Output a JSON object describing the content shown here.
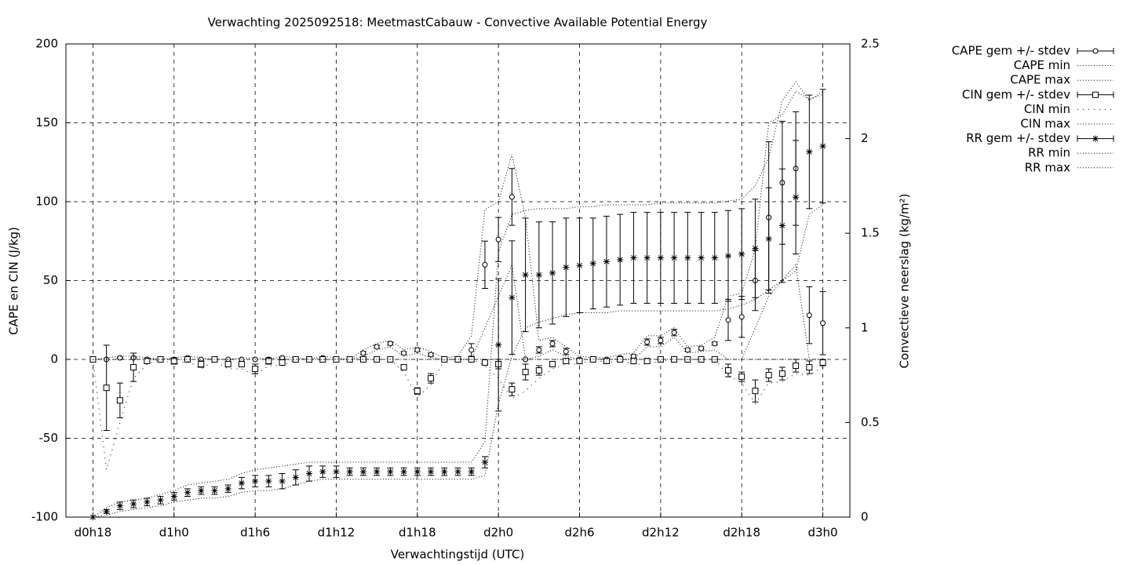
{
  "chart_data": {
    "type": "errorbar",
    "title": "Verwachting 2025092518: MeetmastCabauw - Convective Available Potential Energy",
    "xlabel": "Verwachtingstijd (UTC)",
    "ylabel": "CAPE en CIN (J/kg)",
    "y2label": "Convectieve neerslag (kg/m²)",
    "grid": true,
    "legend": "outside-right",
    "xlim": [
      -2,
      56
    ],
    "xticks": [
      {
        "value": 0,
        "label": "d0h18"
      },
      {
        "value": 6,
        "label": "d1h0"
      },
      {
        "value": 12,
        "label": "d1h6"
      },
      {
        "value": 18,
        "label": "d1h12"
      },
      {
        "value": 24,
        "label": "d1h18"
      },
      {
        "value": 30,
        "label": "d2h0"
      },
      {
        "value": 36,
        "label": "d2h6"
      },
      {
        "value": 42,
        "label": "d2h12"
      },
      {
        "value": 48,
        "label": "d2h18"
      },
      {
        "value": 54,
        "label": "d3h0"
      }
    ],
    "ylim": [
      -100,
      200
    ],
    "yticks": [
      -100,
      -50,
      0,
      50,
      100,
      150,
      200
    ],
    "y2lim": [
      0,
      2.5
    ],
    "y2ticks": [
      0,
      0.5,
      1,
      1.5,
      2,
      2.5
    ],
    "x": [
      0,
      1,
      2,
      3,
      4,
      5,
      6,
      7,
      8,
      9,
      10,
      11,
      12,
      13,
      14,
      15,
      16,
      17,
      18,
      19,
      20,
      21,
      22,
      23,
      24,
      25,
      26,
      27,
      28,
      29,
      30,
      31,
      32,
      33,
      34,
      35,
      36,
      37,
      38,
      39,
      40,
      41,
      42,
      43,
      44,
      45,
      46,
      47,
      48,
      49,
      50,
      51,
      52,
      53,
      54
    ],
    "series": [
      {
        "name": "CAPE gem +/- stdev",
        "color": "#000000",
        "marker": "circle",
        "values": [
          0,
          0,
          1,
          1,
          0,
          0,
          0,
          1,
          0,
          0,
          0,
          0,
          0,
          0,
          1,
          0,
          0,
          1,
          0,
          0,
          4,
          8,
          10,
          4,
          6,
          3,
          0,
          0,
          6,
          60,
          76,
          103,
          0,
          6,
          10,
          5,
          0,
          0,
          0,
          1,
          2,
          11,
          12,
          17,
          6,
          7,
          10,
          25,
          27,
          50,
          90,
          112,
          121,
          28,
          23
        ],
        "errors": [
          0,
          0,
          0.5,
          0.5,
          0,
          0,
          0.5,
          0.5,
          0,
          0,
          0,
          0,
          0,
          0,
          0.5,
          0,
          0,
          0.5,
          0,
          0,
          1,
          1,
          1,
          1,
          1,
          1,
          0,
          0,
          4,
          15,
          14,
          18,
          0,
          2,
          2,
          2,
          0,
          0,
          0,
          0.5,
          1,
          2,
          2,
          2,
          1,
          1,
          1,
          13,
          13,
          19,
          48,
          39,
          36,
          18,
          20
        ]
      },
      {
        "name": "CAPE min",
        "color": "#000000",
        "style": "dotted",
        "values": [
          0,
          0,
          0,
          0,
          0,
          0,
          0,
          0,
          0,
          0,
          0,
          0,
          0,
          0,
          0,
          0,
          0,
          0,
          0,
          0,
          2,
          6,
          8,
          2,
          4,
          1,
          0,
          0,
          0,
          20,
          40,
          60,
          0,
          2,
          6,
          2,
          0,
          0,
          0,
          0,
          0,
          8,
          8,
          14,
          4,
          5,
          6,
          0,
          0,
          20,
          40,
          50,
          60,
          0,
          0
        ]
      },
      {
        "name": "CAPE max",
        "color": "#000000",
        "style": "dotted",
        "values": [
          0,
          1,
          2,
          2,
          1,
          0,
          1,
          2,
          1,
          0,
          0,
          1,
          1,
          0,
          2,
          1,
          0,
          2,
          1,
          0,
          6,
          10,
          12,
          6,
          8,
          5,
          1,
          2,
          15,
          95,
          100,
          130,
          90,
          12,
          14,
          8,
          2,
          1,
          1,
          3,
          4,
          15,
          15,
          20,
          8,
          9,
          14,
          40,
          42,
          70,
          150,
          155,
          170,
          165,
          168
        ]
      },
      {
        "name": "CIN gem +/- stdev",
        "color": "#000000",
        "marker": "square",
        "values": [
          0,
          -18,
          -26,
          -5,
          -1,
          0,
          -1,
          0,
          -3,
          0,
          -3,
          -3,
          -6,
          -1,
          -2,
          0,
          0,
          0,
          0,
          0,
          0,
          0,
          0,
          -5,
          -20,
          -12,
          0,
          0,
          0,
          -2,
          -3,
          -19,
          -8,
          -7,
          -3,
          -1,
          -1,
          0,
          -1,
          0,
          -1,
          -1,
          0,
          0,
          0,
          0,
          0,
          -7,
          -11,
          -20,
          -10,
          -9,
          -4,
          -5,
          -2
        ],
        "errors": [
          0,
          27,
          11,
          9,
          1,
          0,
          2,
          0,
          2,
          0,
          1,
          1,
          3,
          2,
          1,
          0,
          0,
          0,
          0,
          0,
          0,
          0,
          0,
          1,
          2,
          3,
          0,
          0,
          0,
          1,
          3,
          4,
          5,
          3,
          1,
          1,
          1,
          0,
          1,
          0,
          1,
          1,
          0,
          0,
          0,
          0,
          0,
          4,
          3,
          7,
          4,
          4,
          4,
          4,
          2
        ]
      },
      {
        "name": "CIN min",
        "color": "#000000",
        "style": "sparse",
        "values": [
          0,
          -70,
          -40,
          -12,
          -3,
          0,
          -3,
          -1,
          -6,
          -1,
          -6,
          -6,
          -10,
          -4,
          -4,
          0,
          0,
          0,
          0,
          0,
          0,
          0,
          0,
          -8,
          -24,
          -16,
          0,
          0,
          0,
          -4,
          -12,
          -25,
          -20,
          -12,
          -6,
          -3,
          -3,
          0,
          -2,
          -1,
          -3,
          -3,
          -1,
          0,
          0,
          0,
          0,
          -10,
          -15,
          -28,
          -15,
          -14,
          -9,
          -10,
          -5
        ]
      },
      {
        "name": "CIN max",
        "color": "#000000",
        "style": "dotted",
        "values": [
          0,
          0,
          0,
          0,
          0,
          0,
          0,
          0,
          0,
          0,
          0,
          0,
          0,
          0,
          0,
          0,
          0,
          0,
          0,
          0,
          0,
          0,
          0,
          0,
          0,
          0,
          0,
          0,
          0,
          0,
          0,
          0,
          0,
          0,
          0,
          0,
          0,
          0,
          0,
          0,
          0,
          0,
          0,
          0,
          0,
          0,
          0,
          0,
          0,
          0,
          0,
          0,
          0,
          0,
          0
        ]
      },
      {
        "name": "RR gem +/- stdev",
        "color": "#000000",
        "marker": "star",
        "axis": "y2",
        "values": [
          0,
          0.03,
          0.06,
          0.07,
          0.08,
          0.09,
          0.11,
          0.13,
          0.14,
          0.14,
          0.15,
          0.18,
          0.19,
          0.19,
          0.19,
          0.21,
          0.23,
          0.24,
          0.24,
          0.24,
          0.24,
          0.24,
          0.24,
          0.24,
          0.24,
          0.24,
          0.24,
          0.24,
          0.24,
          0.29,
          0.91,
          1.16,
          1.28,
          1.28,
          1.29,
          1.32,
          1.33,
          1.34,
          1.35,
          1.36,
          1.37,
          1.37,
          1.37,
          1.37,
          1.37,
          1.37,
          1.37,
          1.38,
          1.39,
          1.42,
          1.47,
          1.54,
          1.69,
          1.93,
          1.96
        ],
        "errors": [
          0,
          0.01,
          0.02,
          0.02,
          0.02,
          0.02,
          0.02,
          0.02,
          0.02,
          0.02,
          0.02,
          0.03,
          0.03,
          0.03,
          0.04,
          0.04,
          0.04,
          0.03,
          0.03,
          0.02,
          0.02,
          0.02,
          0.02,
          0.02,
          0.02,
          0.02,
          0.02,
          0.02,
          0.02,
          0.03,
          0.35,
          0.3,
          0.3,
          0.28,
          0.27,
          0.26,
          0.25,
          0.24,
          0.24,
          0.24,
          0.24,
          0.24,
          0.24,
          0.24,
          0.24,
          0.24,
          0.24,
          0.24,
          0.24,
          0.26,
          0.27,
          0.3,
          0.3,
          0.3,
          0.3
        ]
      },
      {
        "name": "RR min",
        "color": "#000000",
        "style": "dotted",
        "axis": "y2",
        "values": [
          0,
          0.01,
          0.03,
          0.04,
          0.05,
          0.06,
          0.08,
          0.09,
          0.1,
          0.1,
          0.11,
          0.13,
          0.14,
          0.14,
          0.15,
          0.17,
          0.19,
          0.2,
          0.2,
          0.2,
          0.2,
          0.2,
          0.2,
          0.2,
          0.2,
          0.2,
          0.2,
          0.2,
          0.2,
          0.22,
          0.6,
          0.85,
          1.0,
          1.03,
          1.05,
          1.07,
          1.08,
          1.08,
          1.08,
          1.09,
          1.09,
          1.09,
          1.09,
          1.09,
          1.09,
          1.09,
          1.09,
          1.1,
          1.12,
          1.15,
          1.2,
          1.25,
          1.3,
          1.6,
          1.65
        ]
      },
      {
        "name": "RR max",
        "color": "#000000",
        "style": "dotted",
        "axis": "y2",
        "values": [
          0,
          0.05,
          0.08,
          0.09,
          0.1,
          0.12,
          0.14,
          0.17,
          0.18,
          0.19,
          0.2,
          0.23,
          0.25,
          0.26,
          0.27,
          0.28,
          0.29,
          0.29,
          0.29,
          0.29,
          0.29,
          0.29,
          0.29,
          0.29,
          0.29,
          0.29,
          0.29,
          0.29,
          0.29,
          0.4,
          1.4,
          1.6,
          1.62,
          1.63,
          1.63,
          1.63,
          1.64,
          1.64,
          1.65,
          1.65,
          1.65,
          1.65,
          1.66,
          1.66,
          1.66,
          1.66,
          1.66,
          1.67,
          1.68,
          1.75,
          1.9,
          2.2,
          2.3,
          2.2,
          2.25
        ]
      }
    ]
  }
}
